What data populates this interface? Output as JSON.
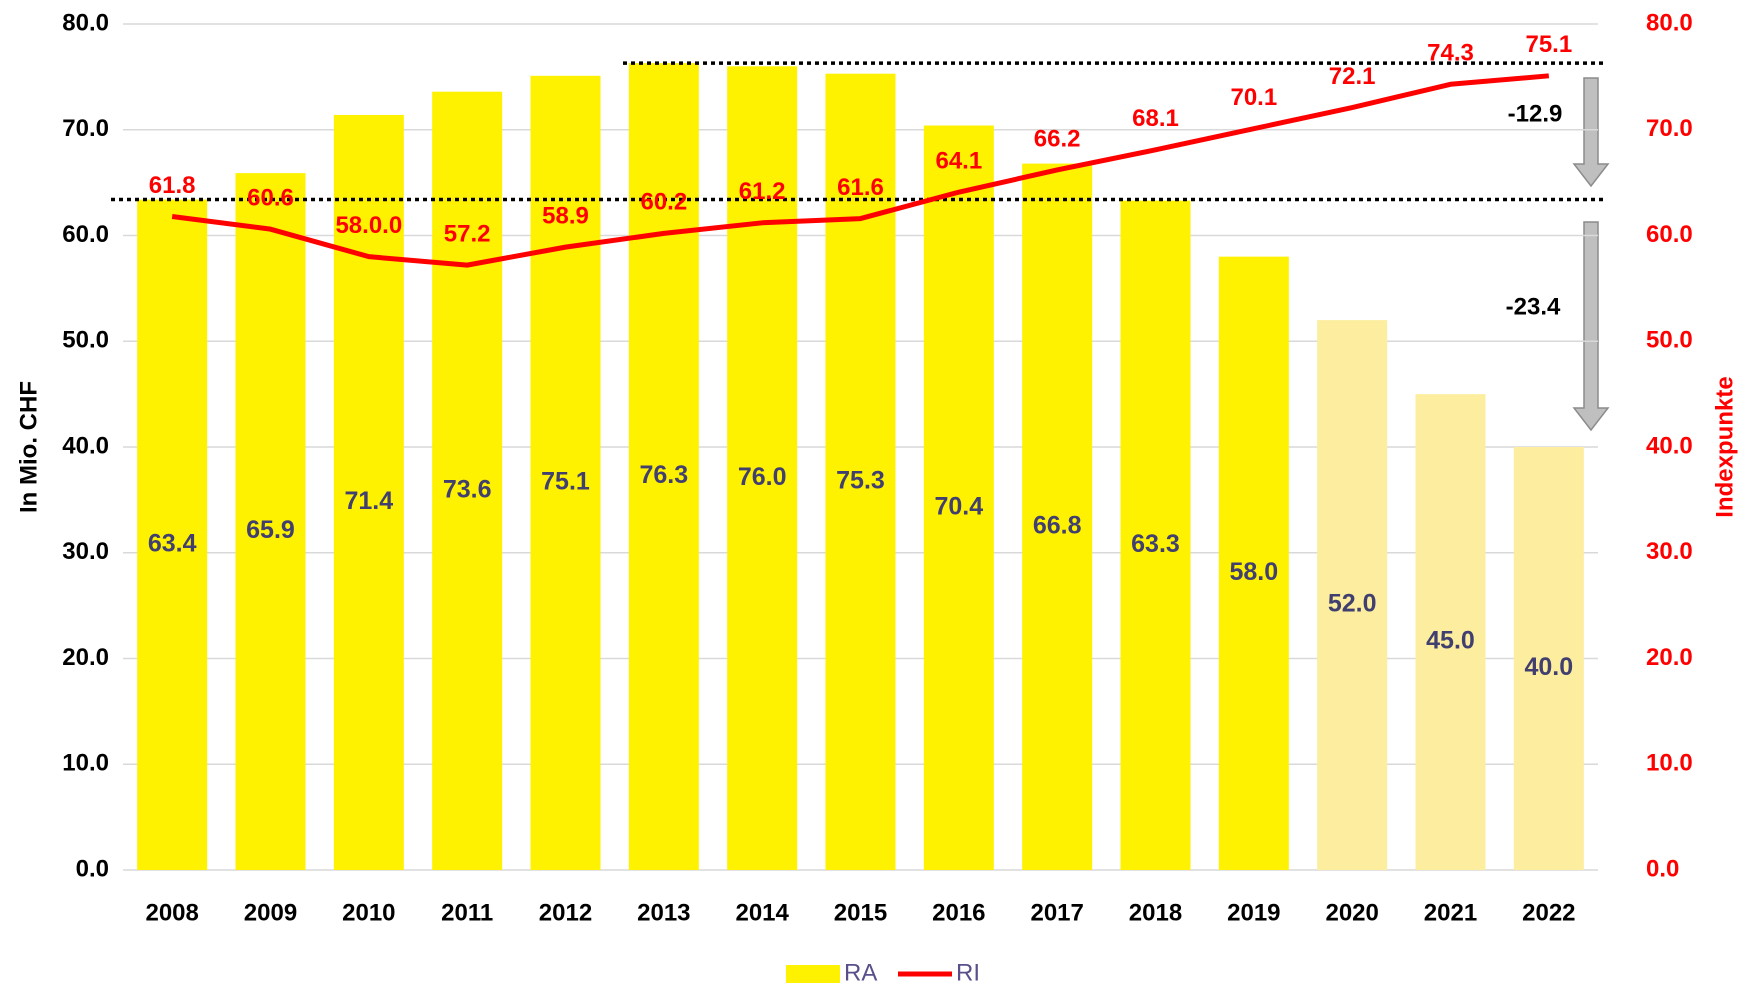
{
  "chart_data": {
    "type": "bar",
    "categories": [
      "2008",
      "2009",
      "2010",
      "2011",
      "2012",
      "2013",
      "2014",
      "2015",
      "2016",
      "2017",
      "2018",
      "2019",
      "2020",
      "2021",
      "2022"
    ],
    "series": [
      {
        "name": "RA",
        "type": "bar",
        "color": "#fff200",
        "colors": [
          "#fff200",
          "#fff200",
          "#fff200",
          "#fff200",
          "#fff200",
          "#fff200",
          "#fff200",
          "#fff200",
          "#fff200",
          "#fff200",
          "#fff200",
          "#fff200",
          "#fcee9e",
          "#fcee9e",
          "#fcee9e"
        ],
        "values": [
          63.4,
          65.9,
          71.4,
          73.6,
          75.1,
          76.3,
          76.0,
          75.3,
          70.4,
          66.8,
          63.3,
          58.0,
          52.0,
          45.0,
          40.0
        ],
        "value_labels": [
          "63.4",
          "65.9",
          "71.4",
          "73.6",
          "75.1",
          "76.3",
          "76.0",
          "75.3",
          "70.4",
          "66.8",
          "63.3",
          "58.0",
          "52.0",
          "45.0",
          "40.0"
        ]
      },
      {
        "name": "RI",
        "type": "line",
        "axis": "y2",
        "color": "#ff0000",
        "values": [
          61.8,
          60.6,
          58.0,
          57.2,
          58.9,
          60.2,
          61.2,
          61.6,
          64.1,
          66.2,
          68.1,
          70.1,
          72.1,
          74.3,
          75.1
        ],
        "value_labels": [
          "61.8",
          "60.6",
          "58.0.0",
          "57.2",
          "58.9",
          "60.2",
          "61.2",
          "61.6",
          "64.1",
          "66.2",
          "68.1",
          "70.1",
          "72.1",
          "74.3",
          "75.1"
        ]
      }
    ],
    "ylabel": "In Mio. CHF",
    "y2label": "Indexpunkte",
    "ylim": [
      0,
      80
    ],
    "yticks": [
      {
        "value": 0,
        "label": "0.0"
      },
      {
        "value": 10,
        "label": "10.0"
      },
      {
        "value": 20,
        "label": "20.0"
      },
      {
        "value": 30,
        "label": "30.0"
      },
      {
        "value": 40,
        "label": "40.0"
      },
      {
        "value": 50,
        "label": "50.0"
      },
      {
        "value": 60,
        "label": "60.0"
      },
      {
        "value": 70,
        "label": "70.0"
      },
      {
        "value": 80,
        "label": "80.0"
      }
    ],
    "y2lim": [
      0,
      80
    ],
    "y2ticks": [
      {
        "value": 0,
        "label": "0.0"
      },
      {
        "value": 10,
        "label": "10.0"
      },
      {
        "value": 20,
        "label": "20.0"
      },
      {
        "value": 30,
        "label": "30.0"
      },
      {
        "value": 40,
        "label": "40.0"
      },
      {
        "value": 50,
        "label": "50.0"
      },
      {
        "value": 60,
        "label": "60.0"
      },
      {
        "value": 70,
        "label": "70.0"
      },
      {
        "value": 80,
        "label": "80.0"
      }
    ],
    "reference_lines": [
      76.3,
      63.4
    ],
    "annotations": [
      {
        "text": "-12.9"
      },
      {
        "text": "-23.4"
      }
    ],
    "grid": true,
    "legend": "bottom"
  }
}
